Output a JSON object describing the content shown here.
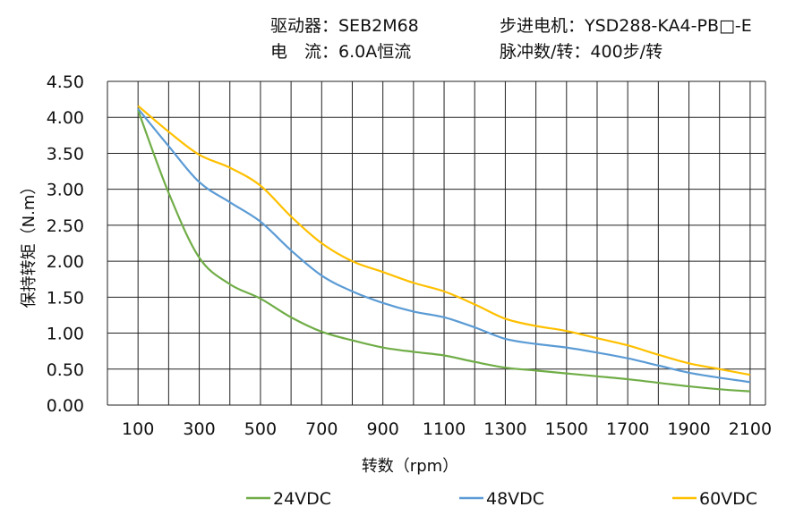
{
  "header": {
    "driver": "驱动器：SEB2M68",
    "motor": "步进电机：YSD288-KA4-PB□-E",
    "current": "电　流：6.0A恒流",
    "pulses": "脉冲数/转：400步/转"
  },
  "chart_data": {
    "type": "line",
    "title": "",
    "xlabel": "转数（rpm）",
    "ylabel": "保持转矩（N.m）",
    "xlim": [
      0,
      2150
    ],
    "ylim": [
      0,
      4.5
    ],
    "grid": true,
    "legend_position": "bottom",
    "x_ticks": [
      "100",
      "300",
      "500",
      "700",
      "900",
      "1100",
      "1300",
      "1500",
      "1700",
      "1900",
      "2100"
    ],
    "y_ticks": [
      "0.00",
      "0.50",
      "1.00",
      "1.50",
      "2.00",
      "2.50",
      "3.00",
      "3.50",
      "4.00",
      "4.50"
    ],
    "x": [
      100,
      200,
      300,
      400,
      500,
      600,
      700,
      800,
      900,
      1000,
      1100,
      1200,
      1300,
      1400,
      1500,
      1600,
      1700,
      1800,
      1900,
      2000,
      2100
    ],
    "series": [
      {
        "name": "24VDC",
        "color": "#70ad47",
        "values": [
          4.1,
          2.95,
          2.05,
          1.68,
          1.48,
          1.22,
          1.02,
          0.9,
          0.8,
          0.74,
          0.69,
          0.6,
          0.52,
          0.48,
          0.44,
          0.4,
          0.36,
          0.31,
          0.26,
          0.22,
          0.19
        ]
      },
      {
        "name": "48VDC",
        "color": "#5b9bd5",
        "values": [
          4.12,
          3.6,
          3.1,
          2.82,
          2.55,
          2.15,
          1.8,
          1.58,
          1.42,
          1.3,
          1.22,
          1.08,
          0.92,
          0.85,
          0.8,
          0.73,
          0.65,
          0.55,
          0.45,
          0.38,
          0.32
        ]
      },
      {
        "name": "60VDC",
        "color": "#ffc000",
        "values": [
          4.16,
          3.8,
          3.48,
          3.3,
          3.05,
          2.62,
          2.25,
          2.0,
          1.85,
          1.7,
          1.58,
          1.4,
          1.2,
          1.1,
          1.03,
          0.93,
          0.83,
          0.7,
          0.58,
          0.5,
          0.42
        ]
      }
    ]
  }
}
